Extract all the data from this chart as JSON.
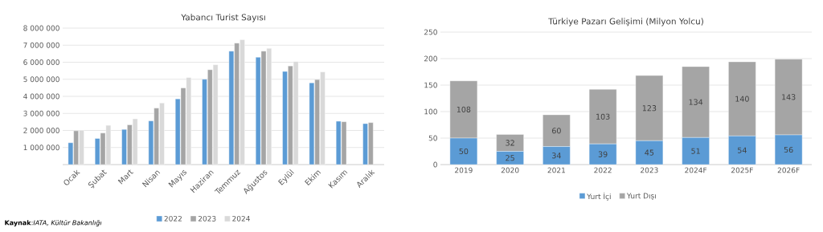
{
  "chart_data": [
    {
      "type": "bar",
      "title": "Yabancı Turist Sayısı",
      "categories": [
        "Ocak",
        "Şubat",
        "Mart",
        "Nisan",
        "Mayıs",
        "Haziran",
        "Temmuz",
        "Ağustos",
        "Eylül",
        "Ekim",
        "Kasım",
        "Aralık"
      ],
      "series": [
        {
          "name": "2022",
          "color": "#5b9bd5",
          "values": [
            1280000,
            1530000,
            2060000,
            2560000,
            3850000,
            5000000,
            6650000,
            6290000,
            5460000,
            4790000,
            2540000,
            2400000
          ]
        },
        {
          "name": "2023",
          "color": "#a5a5a5",
          "values": [
            1980000,
            1850000,
            2330000,
            3310000,
            4490000,
            5560000,
            7120000,
            6650000,
            5780000,
            4980000,
            2510000,
            2460000
          ]
        },
        {
          "name": "2024",
          "color": "#d9d9d9",
          "values": [
            2010000,
            2300000,
            2680000,
            3610000,
            5100000,
            5850000,
            7320000,
            6810000,
            6040000,
            5430000,
            null,
            null
          ]
        }
      ],
      "ylim": [
        0,
        8000000
      ],
      "yticks": [
        {
          "value": 0,
          "label": null
        },
        {
          "value": 1000000,
          "label": "1 000 000"
        },
        {
          "value": 2000000,
          "label": "2 000 000"
        },
        {
          "value": 3000000,
          "label": "3 000 000"
        },
        {
          "value": 4000000,
          "label": "4 000 000"
        },
        {
          "value": 5000000,
          "label": "5 000 000"
        },
        {
          "value": 6000000,
          "label": "6 000 000"
        },
        {
          "value": 7000000,
          "label": "7 000 000"
        },
        {
          "value": 8000000,
          "label": "8 000 000"
        }
      ],
      "grid": "y",
      "legend": "bottom",
      "annotations": [
        "**Kaynak**:*IATA, Kültür Bakanlığı*"
      ]
    },
    {
      "type": "bar",
      "title": "Türkiye Pazarı Gelişimi (Milyon Yolcu)",
      "categories": [
        "2019",
        "2020",
        "2021",
        "2022",
        "2023",
        "2024F",
        "2025F",
        "2026F"
      ],
      "stacked": true,
      "series": [
        {
          "name": "Yurt İçi",
          "color": "#5b9bd5",
          "values": [
            50,
            25,
            34,
            39,
            45,
            51,
            54,
            56
          ]
        },
        {
          "name": "Yurt Dışı",
          "color": "#a5a5a5",
          "values": [
            108,
            32,
            60,
            103,
            123,
            134,
            140,
            143
          ]
        }
      ],
      "ylim": [
        0,
        250
      ],
      "yticks": [
        0,
        50,
        100,
        150,
        200,
        250
      ],
      "grid": "y",
      "legend": "bottom",
      "data_labels": true
    }
  ]
}
